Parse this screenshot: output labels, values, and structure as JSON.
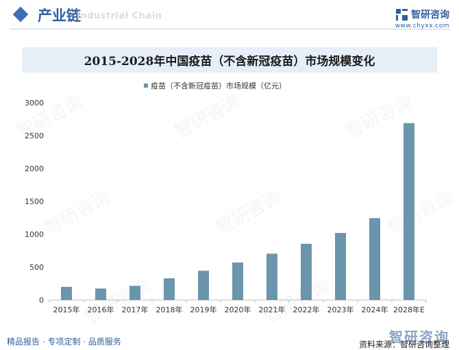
{
  "header": {
    "section_title": "产业链",
    "section_subtitle": "Industrial Chain",
    "brand_name": "智研咨询",
    "brand_url": "www.chyxx.com"
  },
  "footer": {
    "left_text": "精品报告 · 专项定制 · 品质服务",
    "source_text": "资料来源：智研咨询整理",
    "brand_watermark": "智研咨询"
  },
  "watermark_text": "智研咨询",
  "colors": {
    "bar": "#6a95ab",
    "accent": "#2f5f9e",
    "title_band": "#e6eef7"
  },
  "chart_data": {
    "type": "bar",
    "title": "2015-2028年中国疫苗（不含新冠疫苗）市场规模变化",
    "categories": [
      "2015年",
      "2016年",
      "2017年",
      "2018年",
      "2019年",
      "2020年",
      "2021年",
      "2022年",
      "2023年",
      "2024年",
      "2028年E"
    ],
    "series": [
      {
        "name": "疫苗（不含新冠疫苗）市场规模（亿元）",
        "values": [
          200,
          175,
          215,
          330,
          445,
          570,
          705,
          855,
          1020,
          1245,
          2690
        ]
      }
    ],
    "y_ticks": [
      0,
      500,
      1000,
      1500,
      2000,
      2500,
      3000
    ],
    "ylim": [
      0,
      3000
    ],
    "legend_position": "top-center",
    "grid": false
  }
}
